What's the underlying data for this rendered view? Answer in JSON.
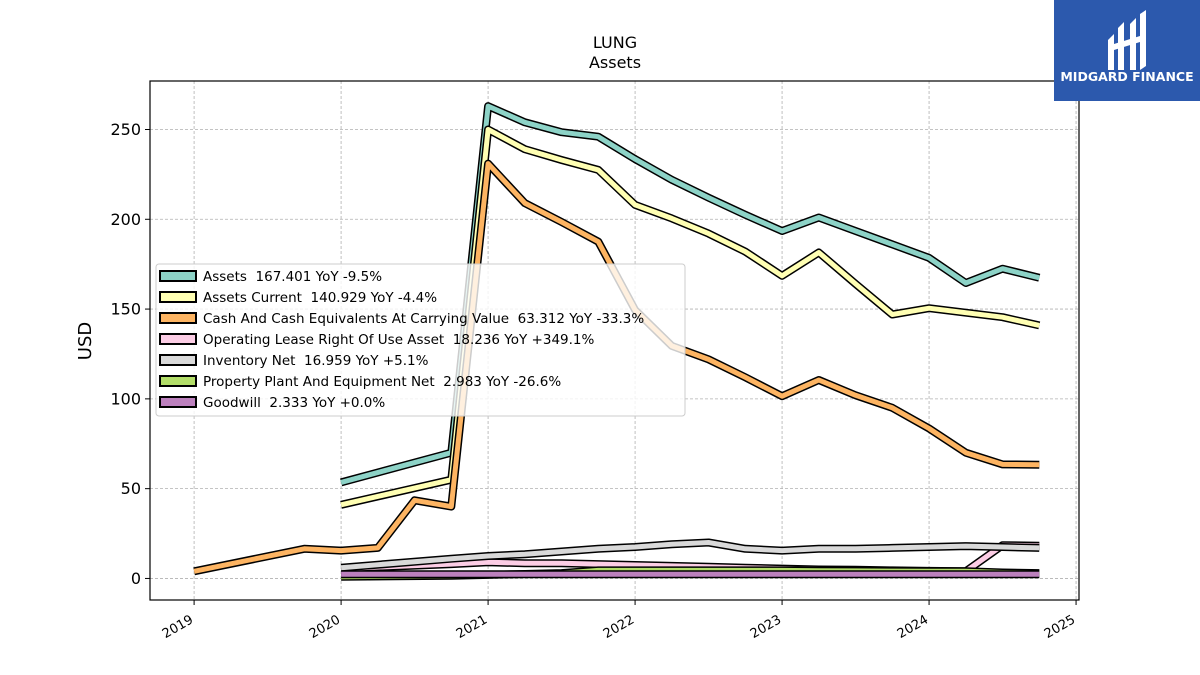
{
  "brand": {
    "name": "MIDGARD FINANCE",
    "color": "#2c59ad"
  },
  "chart_data": {
    "type": "line",
    "title": "LUNG",
    "subtitle": "Assets",
    "ylabel": "USD",
    "xlim": [
      2018.7,
      2025.02
    ],
    "ylim": [
      -12,
      277
    ],
    "yticks": [
      0,
      50,
      100,
      150,
      200,
      250
    ],
    "xticks": [
      "2019",
      "2020",
      "2021",
      "2022",
      "2023",
      "2024",
      "2025"
    ],
    "grid": true,
    "legend_position": "center-left",
    "series": [
      {
        "name": "Assets",
        "legend": "Assets  167.401 YoY -9.5%",
        "color": "#8dd3c7",
        "x": [
          2020.0,
          2020.75,
          2021.0,
          2021.25,
          2021.5,
          2021.75,
          2022.0,
          2022.25,
          2022.5,
          2022.75,
          2023.0,
          2023.25,
          2023.5,
          2023.75,
          2024.0,
          2024.25,
          2024.5,
          2024.75
        ],
        "y": [
          53.5,
          70.0,
          263.0,
          254.0,
          248.5,
          246.0,
          233.5,
          222.0,
          212.0,
          202.5,
          193.5,
          201.0,
          193.5,
          186.0,
          178.5,
          164.5,
          172.5,
          167.4
        ]
      },
      {
        "name": "Assets Current",
        "legend": "Assets Current  140.929 YoY -4.4%",
        "color": "#ffffb3",
        "x": [
          2020.0,
          2020.75,
          2021.0,
          2021.25,
          2021.5,
          2021.75,
          2022.0,
          2022.25,
          2022.5,
          2022.75,
          2023.0,
          2023.25,
          2023.5,
          2023.75,
          2024.0,
          2024.25,
          2024.5,
          2024.75
        ],
        "y": [
          41.0,
          55.0,
          250.0,
          239.0,
          233.0,
          227.5,
          208.0,
          200.5,
          192.0,
          182.0,
          168.5,
          181.5,
          164.0,
          147.0,
          150.5,
          148.0,
          145.5,
          140.9
        ]
      },
      {
        "name": "Cash And Cash Equivalents At Carrying Value",
        "legend": "Cash And Cash Equivalents At Carrying Value  63.312 YoY -33.3%",
        "color": "#fdb462",
        "x": [
          2019.0,
          2019.75,
          2020.0,
          2020.25,
          2020.5,
          2020.75,
          2021.0,
          2021.25,
          2021.5,
          2021.75,
          2022.0,
          2022.25,
          2022.5,
          2022.75,
          2023.0,
          2023.25,
          2023.5,
          2023.75,
          2024.0,
          2024.25,
          2024.5,
          2024.75
        ],
        "y": [
          4.0,
          16.5,
          15.5,
          17.0,
          43.5,
          40.0,
          231.0,
          209.0,
          198.5,
          187.5,
          149.5,
          129.5,
          122.0,
          112.0,
          101.5,
          110.5,
          102.0,
          95.0,
          83.5,
          70.0,
          63.5,
          63.3
        ]
      },
      {
        "name": "Operating Lease Right Of Use Asset",
        "legend": "Operating Lease Right Of Use Asset  18.236 YoY +349.1%",
        "color": "#fccde5",
        "x": [
          2020.0,
          2020.75,
          2021.0,
          2021.25,
          2021.5,
          2021.75,
          2022.0,
          2022.25,
          2022.5,
          2022.75,
          2023.0,
          2023.25,
          2023.5,
          2023.75,
          2024.0,
          2024.25,
          2024.5,
          2024.75
        ],
        "y": [
          5.5,
          8.0,
          9.0,
          8.5,
          8.5,
          8.0,
          7.5,
          7.0,
          6.5,
          6.0,
          5.5,
          5.0,
          4.8,
          4.5,
          4.2,
          4.0,
          18.5,
          18.2
        ]
      },
      {
        "name": "Inventory Net",
        "legend": "Inventory Net  16.959 YoY +5.1%",
        "color": "#d9d9d9",
        "x": [
          2020.0,
          2020.75,
          2021.0,
          2021.25,
          2021.5,
          2021.75,
          2022.0,
          2022.25,
          2022.5,
          2022.75,
          2023.0,
          2023.25,
          2023.5,
          2023.75,
          2024.0,
          2024.25,
          2024.5,
          2024.75
        ],
        "y": [
          6.0,
          11.0,
          12.5,
          13.5,
          15.0,
          16.5,
          17.5,
          19.0,
          20.0,
          16.5,
          15.5,
          16.5,
          16.5,
          17.0,
          17.5,
          18.0,
          17.5,
          17.0
        ]
      },
      {
        "name": "Property Plant And Equipment Net",
        "legend": "Property Plant And Equipment Net  2.983 YoY -26.6%",
        "color": "#b3de69",
        "x": [
          2020.0,
          2020.75,
          2021.0,
          2021.25,
          2021.5,
          2021.75,
          2022.0,
          2022.25,
          2022.5,
          2022.75,
          2023.0,
          2023.25,
          2023.5,
          2023.75,
          2024.0,
          2024.25,
          2024.5,
          2024.75
        ],
        "y": [
          1.0,
          1.5,
          2.0,
          2.5,
          3.0,
          4.5,
          4.5,
          4.5,
          4.5,
          4.5,
          4.5,
          4.3,
          4.2,
          4.1,
          4.0,
          4.0,
          3.3,
          3.0
        ]
      },
      {
        "name": "Goodwill",
        "legend": "Goodwill  2.333 YoY +0.0%",
        "color": "#bc80bd",
        "x": [
          2020.0,
          2020.75,
          2021.0,
          2021.25,
          2021.5,
          2021.75,
          2022.0,
          2022.25,
          2022.5,
          2022.75,
          2023.0,
          2023.25,
          2023.5,
          2023.75,
          2024.0,
          2024.25,
          2024.5,
          2024.75
        ],
        "y": [
          2.333,
          2.333,
          2.333,
          2.333,
          2.333,
          2.333,
          2.333,
          2.333,
          2.333,
          2.333,
          2.333,
          2.333,
          2.333,
          2.333,
          2.333,
          2.333,
          2.333,
          2.333
        ]
      }
    ]
  }
}
